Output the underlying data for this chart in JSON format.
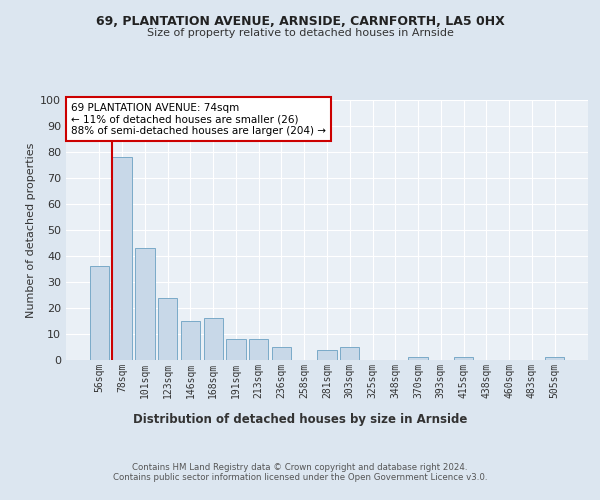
{
  "title1": "69, PLANTATION AVENUE, ARNSIDE, CARNFORTH, LA5 0HX",
  "title2": "Size of property relative to detached houses in Arnside",
  "xlabel": "Distribution of detached houses by size in Arnside",
  "ylabel": "Number of detached properties",
  "categories": [
    "56sqm",
    "78sqm",
    "101sqm",
    "123sqm",
    "146sqm",
    "168sqm",
    "191sqm",
    "213sqm",
    "236sqm",
    "258sqm",
    "281sqm",
    "303sqm",
    "325sqm",
    "348sqm",
    "370sqm",
    "393sqm",
    "415sqm",
    "438sqm",
    "460sqm",
    "483sqm",
    "505sqm"
  ],
  "values": [
    36,
    78,
    43,
    24,
    15,
    16,
    8,
    8,
    5,
    0,
    4,
    5,
    0,
    0,
    1,
    0,
    1,
    0,
    0,
    0,
    1
  ],
  "bar_color": "#c8d8e8",
  "bar_edge_color": "#7aaac8",
  "vline_color": "#cc0000",
  "annotation_text": "69 PLANTATION AVENUE: 74sqm\n← 11% of detached houses are smaller (26)\n88% of semi-detached houses are larger (204) →",
  "annotation_box_color": "#ffffff",
  "annotation_box_edge": "#cc0000",
  "footnote": "Contains HM Land Registry data © Crown copyright and database right 2024.\nContains public sector information licensed under the Open Government Licence v3.0.",
  "bg_color": "#dce6f0",
  "plot_bg_color": "#eaf0f6",
  "ylim": [
    0,
    100
  ],
  "grid_color": "#ffffff"
}
